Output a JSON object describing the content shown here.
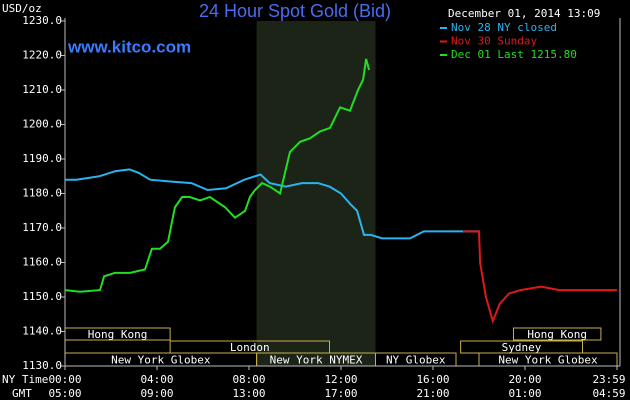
{
  "chart_data": {
    "type": "line",
    "title": "24 Hour Spot Gold (Bid)",
    "site": "www.kitco.com",
    "y_label": "USD/oz",
    "timestamp": "December 01, 2014 13:09",
    "x_row_labels": [
      "NY Time",
      "GMT"
    ],
    "xlim": [
      0,
      24
    ],
    "xticks": [
      {
        "value": 0,
        "label": "00:00"
      },
      {
        "value": 4,
        "label": "04:00"
      },
      {
        "value": 8,
        "label": "08:00"
      },
      {
        "value": 12,
        "label": "12:00"
      },
      {
        "value": 16,
        "label": "16:00"
      },
      {
        "value": 20,
        "label": "20:00"
      },
      {
        "value": 24,
        "label": "23:59"
      }
    ],
    "xticks_gmt": [
      {
        "value": 0,
        "label": "05:00"
      },
      {
        "value": 4,
        "label": "09:00"
      },
      {
        "value": 8,
        "label": "13:00"
      },
      {
        "value": 12,
        "label": "17:00"
      },
      {
        "value": 16,
        "label": "21:00"
      },
      {
        "value": 20,
        "label": "01:00"
      },
      {
        "value": 24,
        "label": "04:59"
      }
    ],
    "ylim": [
      1130,
      1230
    ],
    "yticks": [
      {
        "value": 1130,
        "label": "1130.0"
      },
      {
        "value": 1140,
        "label": "1140.0"
      },
      {
        "value": 1150,
        "label": "1150.0"
      },
      {
        "value": 1160,
        "label": "1160.0"
      },
      {
        "value": 1170,
        "label": "1170.0"
      },
      {
        "value": 1180,
        "label": "1180.0"
      },
      {
        "value": 1190,
        "label": "1190.0"
      },
      {
        "value": 1200,
        "label": "1200.0"
      },
      {
        "value": 1210,
        "label": "1210.0"
      },
      {
        "value": 1220,
        "label": "1220.0"
      },
      {
        "value": 1230,
        "label": "1230.0"
      }
    ],
    "highlight": [
      8.33,
      13.5
    ],
    "sessions": [
      [
        {
          "label": "Hong Kong",
          "start": 0,
          "end": 4.57
        },
        {
          "label": "Hong Kong",
          "start": 19.5,
          "end": 23.3
        }
      ],
      [
        {
          "label": "London",
          "start": 4.57,
          "end": 11.5
        },
        {
          "label": "Sydney",
          "start": 17.2,
          "end": 22.5
        }
      ],
      [
        {
          "label": "New York Globex",
          "start": 0,
          "end": 8.33
        },
        {
          "label": "New York NYMEX",
          "start": 8.33,
          "end": 13.5
        },
        {
          "label": "NY Globex",
          "start": 13.5,
          "end": 17
        },
        {
          "label": "New York Globex",
          "start": 18,
          "end": 24
        }
      ]
    ],
    "series": [
      {
        "name": "Nov 28 NY closed",
        "color": "#2ab4ee",
        "x": [
          0,
          0.5,
          1,
          1.5,
          2.2,
          2.8,
          3.2,
          3.7,
          4.5,
          5.5,
          6.2,
          7,
          7.8,
          8.5,
          8.9,
          9.6,
          10.3,
          11,
          11.5,
          12,
          12.4,
          12.7,
          13,
          13.3,
          13.8,
          15,
          15.6,
          18
        ],
        "values": [
          1184,
          1184,
          1184.5,
          1185,
          1186.5,
          1187,
          1186,
          1184,
          1183.5,
          1183,
          1181,
          1181.5,
          1184,
          1185.5,
          1183,
          1182,
          1183,
          1183,
          1182,
          1180,
          1177,
          1175,
          1168,
          1168,
          1167,
          1167,
          1169,
          1169
        ]
      },
      {
        "name": "Nov 30 Sunday",
        "color": "#e01818",
        "x": [
          17.3,
          18,
          18.05,
          18.3,
          18.6,
          18.9,
          19.3,
          19.8,
          20.7,
          21.5,
          23,
          24
        ],
        "values": [
          1169,
          1169,
          1160,
          1150,
          1143,
          1148,
          1151,
          1152,
          1153,
          1152,
          1152,
          1152
        ]
      },
      {
        "name": "Dec 01 Last 1215.80",
        "color": "#22dd22",
        "x": [
          0,
          0.65,
          1.52,
          1.7,
          2.17,
          2.83,
          3.48,
          3.78,
          4.13,
          4.48,
          4.78,
          5.09,
          5.43,
          5.87,
          6.3,
          6.96,
          7.39,
          7.83,
          8.04,
          8.26,
          8.57,
          8.91,
          9.35,
          9.78,
          10.22,
          10.65,
          11.09,
          11.52,
          11.96,
          12.39,
          12.74,
          12.96,
          13.09,
          13.22
        ],
        "values": [
          1152,
          1151.5,
          1152,
          1156,
          1157,
          1157,
          1158,
          1164,
          1164,
          1166,
          1176,
          1179,
          1179,
          1178,
          1179,
          1176,
          1173,
          1175,
          1179,
          1181,
          1183,
          1182,
          1180,
          1192,
          1195,
          1196,
          1198,
          1199,
          1205,
          1204,
          1210,
          1213,
          1219,
          1215.8
        ]
      }
    ]
  }
}
